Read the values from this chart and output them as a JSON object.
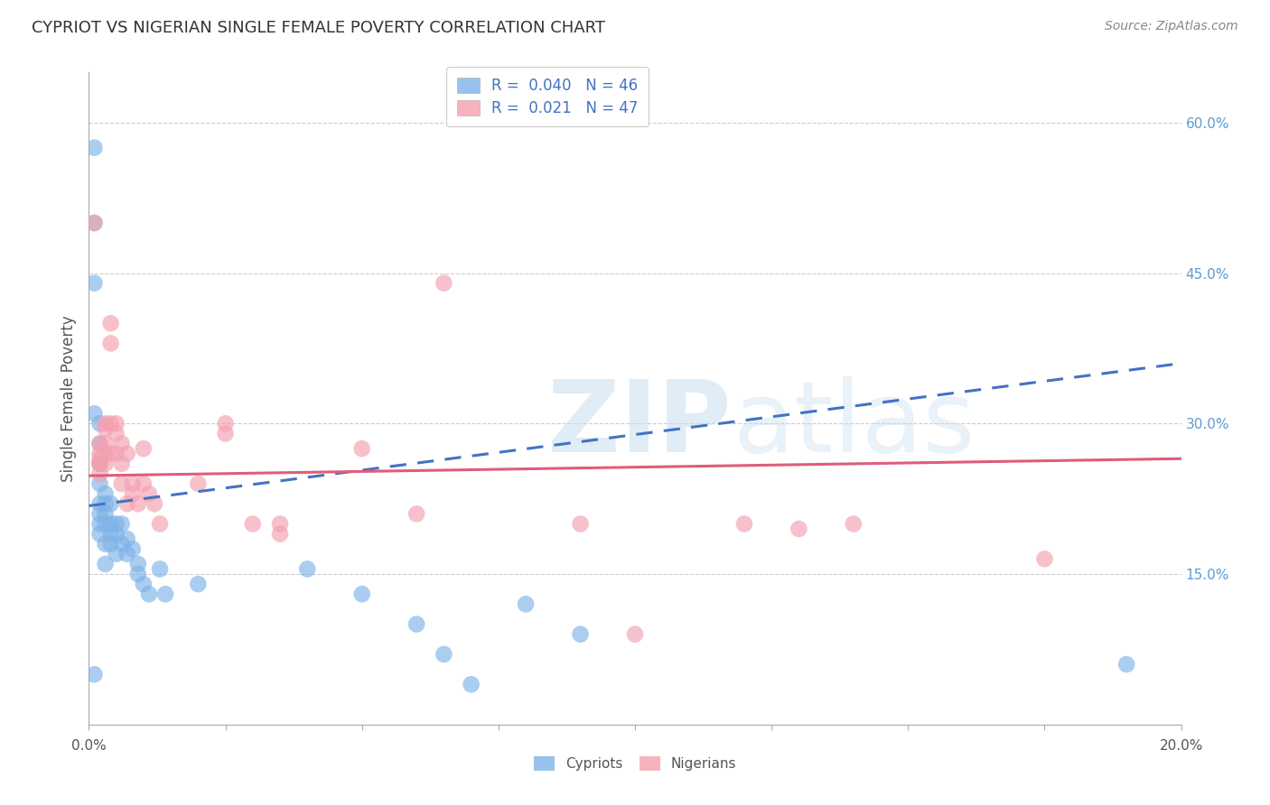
{
  "title": "CYPRIOT VS NIGERIAN SINGLE FEMALE POVERTY CORRELATION CHART",
  "source": "Source: ZipAtlas.com",
  "ylabel": "Single Female Poverty",
  "right_ytick_labels": [
    "60.0%",
    "45.0%",
    "30.0%",
    "15.0%"
  ],
  "right_ytick_values": [
    0.6,
    0.45,
    0.3,
    0.15
  ],
  "xlim": [
    0.0,
    0.2
  ],
  "ylim": [
    0.0,
    0.65
  ],
  "cypriot_color": "#7EB3E8",
  "nigerian_color": "#F4A0B0",
  "cypriot_line_color": "#4472C4",
  "nigerian_line_color": "#E05C7A",
  "legend_cypriot_R": "0.040",
  "legend_cypriot_N": "46",
  "legend_nigerian_R": "0.021",
  "legend_nigerian_N": "47",
  "cypriot_x": [
    0.001,
    0.001,
    0.001,
    0.001,
    0.001,
    0.002,
    0.002,
    0.002,
    0.002,
    0.002,
    0.002,
    0.002,
    0.002,
    0.003,
    0.003,
    0.003,
    0.003,
    0.003,
    0.003,
    0.004,
    0.004,
    0.004,
    0.004,
    0.005,
    0.005,
    0.005,
    0.006,
    0.006,
    0.007,
    0.007,
    0.008,
    0.009,
    0.009,
    0.01,
    0.011,
    0.013,
    0.014,
    0.02,
    0.04,
    0.05,
    0.06,
    0.065,
    0.07,
    0.08,
    0.09,
    0.19
  ],
  "cypriot_y": [
    0.575,
    0.5,
    0.44,
    0.31,
    0.05,
    0.3,
    0.28,
    0.26,
    0.24,
    0.22,
    0.21,
    0.2,
    0.19,
    0.23,
    0.22,
    0.21,
    0.2,
    0.18,
    0.16,
    0.22,
    0.2,
    0.19,
    0.18,
    0.2,
    0.19,
    0.17,
    0.2,
    0.18,
    0.185,
    0.17,
    0.175,
    0.16,
    0.15,
    0.14,
    0.13,
    0.155,
    0.13,
    0.14,
    0.155,
    0.13,
    0.1,
    0.07,
    0.04,
    0.12,
    0.09,
    0.06
  ],
  "nigerian_x": [
    0.001,
    0.002,
    0.002,
    0.002,
    0.002,
    0.002,
    0.002,
    0.003,
    0.003,
    0.003,
    0.003,
    0.003,
    0.004,
    0.004,
    0.004,
    0.004,
    0.005,
    0.005,
    0.005,
    0.006,
    0.006,
    0.006,
    0.007,
    0.007,
    0.008,
    0.008,
    0.009,
    0.01,
    0.01,
    0.011,
    0.012,
    0.013,
    0.02,
    0.025,
    0.025,
    0.03,
    0.035,
    0.035,
    0.05,
    0.06,
    0.065,
    0.09,
    0.1,
    0.12,
    0.13,
    0.14,
    0.175
  ],
  "nigerian_y": [
    0.5,
    0.28,
    0.27,
    0.265,
    0.26,
    0.26,
    0.25,
    0.3,
    0.295,
    0.28,
    0.27,
    0.26,
    0.4,
    0.38,
    0.3,
    0.27,
    0.3,
    0.29,
    0.27,
    0.28,
    0.26,
    0.24,
    0.27,
    0.22,
    0.24,
    0.23,
    0.22,
    0.275,
    0.24,
    0.23,
    0.22,
    0.2,
    0.24,
    0.3,
    0.29,
    0.2,
    0.2,
    0.19,
    0.275,
    0.21,
    0.44,
    0.2,
    0.09,
    0.2,
    0.195,
    0.2,
    0.165
  ],
  "cypriot_trend_x": [
    0.0,
    0.2
  ],
  "cypriot_trend_y": [
    0.218,
    0.36
  ],
  "nigerian_trend_x": [
    0.0,
    0.2
  ],
  "nigerian_trend_y": [
    0.248,
    0.265
  ]
}
